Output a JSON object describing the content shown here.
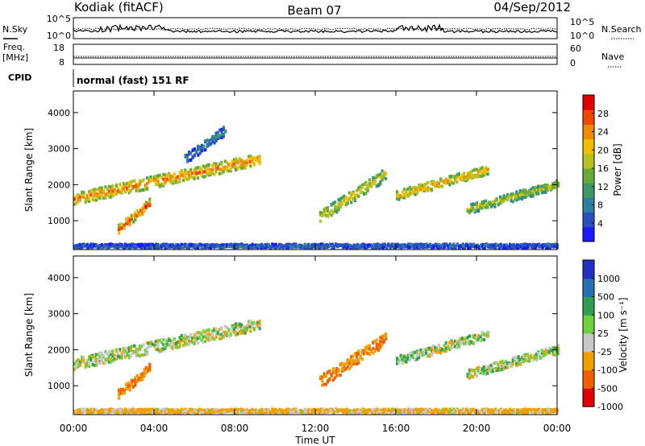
{
  "header": {
    "station": "Kodiak (fitACF)",
    "beam": "Beam 07",
    "date": "04/Sep/2012"
  },
  "summary_panels": {
    "nsky_label": "N.Sky",
    "nsky_ticks": [
      "10^5",
      "10^0"
    ],
    "nsearch_label": "N.Search",
    "nsearch_ticks": [
      "10^5",
      "10^0"
    ],
    "freq_label": "Freq.",
    "freq_unit": "[MHz]",
    "freq_ticks": [
      "18",
      "8"
    ],
    "nave_label": "Nave",
    "nave_ticks": [
      "60",
      "0"
    ],
    "cpid_label": "CPID",
    "cpid_text": "normal (fast) 151 RF"
  },
  "chart_data": [
    {
      "type": "heatmap",
      "name": "power",
      "ylabel": "Slant Range [km]",
      "xlabel": "",
      "xlim": [
        0,
        24
      ],
      "ylim": [
        200,
        4600
      ],
      "yticks": [
        1000,
        2000,
        3000,
        4000
      ],
      "colorbar": {
        "label": "Power [dB]",
        "range": [
          0,
          32
        ],
        "ticks": [
          "4",
          "8",
          "12",
          "16",
          "20",
          "24",
          "28"
        ],
        "colors": [
          "#1a1aff",
          "#2a50c0",
          "#2e7fa0",
          "#3a9a6a",
          "#6aaa3a",
          "#b8c020",
          "#f0c000",
          "#f08800",
          "#f04800",
          "#e00000"
        ]
      },
      "features": [
        {
          "name": "near range band",
          "t": [
            0,
            24
          ],
          "r": [
            250,
            350
          ],
          "value": 6
        },
        {
          "name": "morning arc",
          "t": [
            0,
            9.2
          ],
          "r": [
            1600,
            2700
          ],
          "value": 26
        },
        {
          "name": "morning low blob",
          "t": [
            2.2,
            3.8
          ],
          "r": [
            750,
            1500
          ],
          "value": 28
        },
        {
          "name": "high arc",
          "t": [
            5.5,
            7.5
          ],
          "r": [
            2700,
            3500
          ],
          "value": 8
        },
        {
          "name": "afternoon rise",
          "t": [
            12.2,
            15.5
          ],
          "r": [
            1100,
            2300
          ],
          "value": 20
        },
        {
          "name": "afternoon band",
          "t": [
            16,
            20.5
          ],
          "r": [
            1700,
            2400
          ],
          "value": 24
        },
        {
          "name": "evening band",
          "t": [
            19.5,
            24
          ],
          "r": [
            1300,
            2000
          ],
          "value": 18
        }
      ]
    },
    {
      "type": "heatmap",
      "name": "velocity",
      "ylabel": "Slant Range [km]",
      "xlabel": "Time UT",
      "xlim": [
        0,
        24
      ],
      "ylim": [
        200,
        4600
      ],
      "yticks": [
        1000,
        2000,
        3000,
        4000
      ],
      "xticks": [
        "00:00",
        "04:00",
        "08:00",
        "12:00",
        "16:00",
        "20:00",
        "00:00"
      ],
      "colorbar": {
        "label": "Velocity [m s⁻¹]",
        "ticks": [
          "1000",
          "500",
          "100",
          "25",
          "-25",
          "-100",
          "-500",
          "-1000"
        ],
        "colors": [
          "#2030c0",
          "#2a70b0",
          "#30a050",
          "#70d040",
          "#c8c8c8",
          "#f0a000",
          "#f06000",
          "#e00000"
        ]
      },
      "features": [
        {
          "name": "near range band",
          "t": [
            0,
            24
          ],
          "r": [
            250,
            350
          ],
          "value": -100
        },
        {
          "name": "morning arc",
          "t": [
            0,
            9.2
          ],
          "r": [
            1600,
            2700
          ],
          "value": 0
        },
        {
          "name": "morning low blob",
          "t": [
            2.2,
            3.8
          ],
          "r": [
            750,
            1500
          ],
          "value": -300
        },
        {
          "name": "afternoon rise",
          "t": [
            12.2,
            15.5
          ],
          "r": [
            1100,
            2300
          ],
          "value": -300
        },
        {
          "name": "afternoon band",
          "t": [
            16,
            20.5
          ],
          "r": [
            1700,
            2400
          ],
          "value": 0
        },
        {
          "name": "evening band",
          "t": [
            19.5,
            24
          ],
          "r": [
            1300,
            2000
          ],
          "value": 0
        }
      ]
    }
  ]
}
